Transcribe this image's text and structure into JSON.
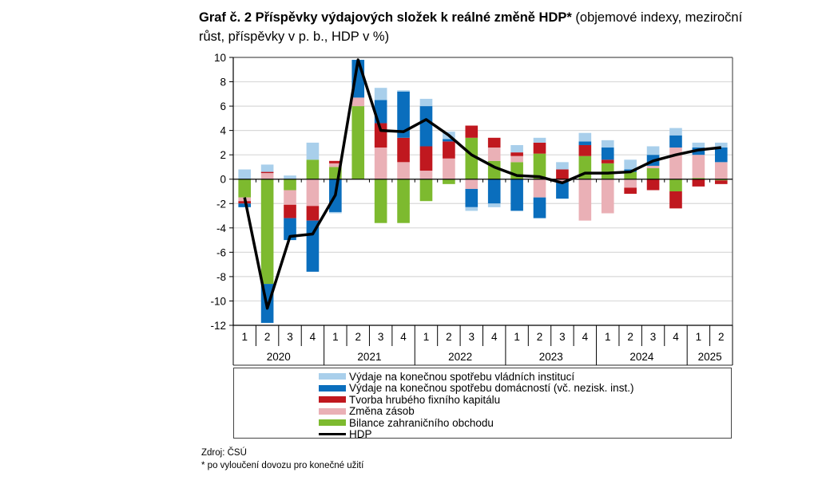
{
  "title": {
    "bold": "Graf č. 2 Příspěvky výdajových složek k reálné změně HDP*",
    "normal": " (objemové indexy, meziroční růst, příspěvky v p. b., HDP v %)"
  },
  "source": "Zdroj: ČSÚ",
  "footnote": "* po vyloučení dovozu pro konečné užití",
  "chart_data": {
    "type": "bar",
    "stacked": true,
    "title": "Graf č. 2 Příspěvky výdajových složek k reálné změně HDP* (objemové indexy, meziroční růst, příspěvky v p. b., HDP v %)",
    "xlabel": "",
    "ylabel": "",
    "ylim": [
      -12,
      10
    ],
    "yticks": [
      10,
      8,
      6,
      4,
      2,
      0,
      -2,
      -4,
      -6,
      -8,
      -10,
      -12
    ],
    "grid": true,
    "legend_position": "bottom",
    "quarters": [
      "1",
      "2",
      "3",
      "4",
      "1",
      "2",
      "3",
      "4",
      "1",
      "2",
      "3",
      "4",
      "1",
      "2",
      "3",
      "4",
      "1",
      "2",
      "3",
      "4",
      "1",
      "2"
    ],
    "years": [
      {
        "label": "2020",
        "span": 4
      },
      {
        "label": "2021",
        "span": 4
      },
      {
        "label": "2022",
        "span": 4
      },
      {
        "label": "2023",
        "span": 4
      },
      {
        "label": "2024",
        "span": 4
      },
      {
        "label": "2025",
        "span": 2
      }
    ],
    "series": [
      {
        "name": "Bilance zahraničního obchodu",
        "color": "#7dba2f",
        "values": [
          -1.5,
          -8.6,
          -0.9,
          1.6,
          1.0,
          6.0,
          -3.6,
          -3.6,
          -1.8,
          -0.4,
          3.4,
          1.5,
          1.4,
          2.1,
          0.0,
          1.9,
          1.3,
          0.6,
          0.9,
          -1.0,
          0.1,
          -0.1
        ]
      },
      {
        "name": "Změna zásob",
        "color": "#eab0b6",
        "values": [
          -0.3,
          0.5,
          -1.2,
          -2.2,
          0.3,
          0.7,
          2.6,
          1.4,
          0.7,
          1.7,
          -0.8,
          1.1,
          0.5,
          -1.5,
          -0.2,
          -3.4,
          -2.8,
          -0.7,
          0.2,
          2.6,
          1.9,
          1.4
        ]
      },
      {
        "name": "Tvorba hrubého fixního kapitálu",
        "color": "#c0181f",
        "values": [
          -0.2,
          0.1,
          -1.1,
          -1.2,
          0.2,
          0.0,
          2.0,
          2.0,
          2.0,
          1.4,
          1.0,
          0.8,
          0.3,
          0.9,
          0.8,
          0.9,
          0.3,
          -0.5,
          -0.9,
          -1.4,
          -0.6,
          -0.3
        ]
      },
      {
        "name": "Výdaje na konečnou spotřebu domácností (vč. nezisk. inst.)",
        "color": "#0a6ebd",
        "values": [
          -0.3,
          -3.2,
          -1.8,
          -4.2,
          -2.7,
          3.1,
          1.9,
          3.8,
          3.3,
          0.2,
          -1.5,
          -2.0,
          -2.6,
          -1.7,
          -1.4,
          0.3,
          1.0,
          0.2,
          0.9,
          1.0,
          0.6,
          1.2
        ]
      },
      {
        "name": "Výdaje na konečnou spotřebu vládních institucí",
        "color": "#a9cfeb",
        "values": [
          0.8,
          0.6,
          0.3,
          1.4,
          -0.1,
          0.0,
          1.0,
          0.1,
          0.6,
          0.6,
          -0.3,
          -0.3,
          0.6,
          0.4,
          0.6,
          0.7,
          0.6,
          0.8,
          0.7,
          0.6,
          0.4,
          0.4
        ]
      }
    ],
    "line": {
      "name": "HDP",
      "color": "#000000",
      "values": [
        -1.5,
        -10.6,
        -4.7,
        -4.5,
        -1.3,
        9.8,
        4.0,
        3.9,
        4.9,
        3.6,
        2.0,
        1.0,
        0.3,
        0.2,
        -0.3,
        0.5,
        0.5,
        0.6,
        1.5,
        2.0,
        2.4,
        2.6
      ]
    },
    "legend": [
      {
        "name": "Výdaje na konečnou spotřebu vládních institucí",
        "color": "#a9cfeb",
        "kind": "bar"
      },
      {
        "name": "Výdaje na konečnou spotřebu domácností (vč. nezisk. inst.)",
        "color": "#0a6ebd",
        "kind": "bar"
      },
      {
        "name": "Tvorba hrubého fixního kapitálu",
        "color": "#c0181f",
        "kind": "bar"
      },
      {
        "name": "Změna zásob",
        "color": "#eab0b6",
        "kind": "bar"
      },
      {
        "name": "Bilance zahraničního obchodu",
        "color": "#7dba2f",
        "kind": "bar"
      },
      {
        "name": "HDP",
        "color": "#000000",
        "kind": "line"
      }
    ]
  }
}
